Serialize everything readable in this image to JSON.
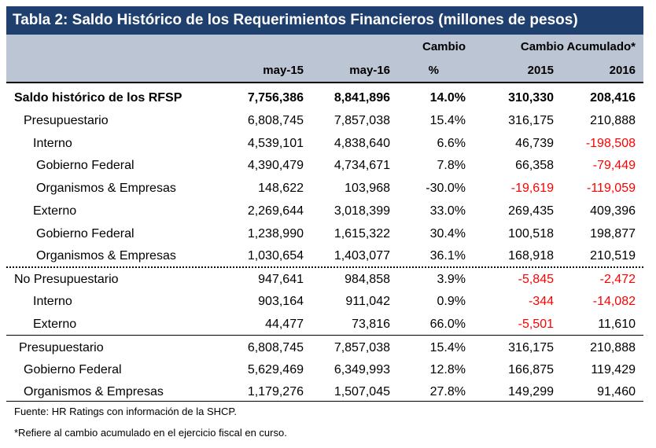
{
  "title": "Tabla 2: Saldo Histórico de los Requerimientos Financieros (millones de pesos)",
  "header": {
    "cambio_top": "Cambio",
    "cambio_acum_top": "Cambio Acumulado*",
    "col1": "may-15",
    "col2": "may-16",
    "col3": "%",
    "col4": "2015",
    "col5": "2016"
  },
  "rows": [
    {
      "label": "Saldo histórico de los RFSP",
      "v1": "7,756,386",
      "v2": "8,841,896",
      "v3": "14.0%",
      "v4": "310,330",
      "v5": "208,416"
    },
    {
      "label": "Presupuestario",
      "v1": "6,808,745",
      "v2": "7,857,038",
      "v3": "15.4%",
      "v4": "316,175",
      "v5": "210,888"
    },
    {
      "label": "Interno",
      "v1": "4,539,101",
      "v2": "4,838,640",
      "v3": "6.6%",
      "v4": "46,739",
      "v5": "-198,508"
    },
    {
      "label": "Gobierno Federal",
      "v1": "4,390,479",
      "v2": "4,734,671",
      "v3": "7.8%",
      "v4": "66,358",
      "v5": "-79,449"
    },
    {
      "label": "Organismos & Empresas",
      "v1": "148,622",
      "v2": "103,968",
      "v3": "-30.0%",
      "v4": "-19,619",
      "v5": "-119,059"
    },
    {
      "label": "Externo",
      "v1": "2,269,644",
      "v2": "3,018,399",
      "v3": "33.0%",
      "v4": "269,435",
      "v5": "409,396"
    },
    {
      "label": "Gobierno Federal",
      "v1": "1,238,990",
      "v2": "1,615,322",
      "v3": "30.4%",
      "v4": "100,518",
      "v5": "198,877"
    },
    {
      "label": "Organismos & Empresas",
      "v1": "1,030,654",
      "v2": "1,403,077",
      "v3": "36.1%",
      "v4": "168,918",
      "v5": "210,519"
    },
    {
      "label": "No Presupuestario",
      "v1": "947,641",
      "v2": "984,858",
      "v3": "3.9%",
      "v4": "-5,845",
      "v5": "-2,472"
    },
    {
      "label": "Interno",
      "v1": "903,164",
      "v2": "911,042",
      "v3": "0.9%",
      "v4": "-344",
      "v5": "-14,082"
    },
    {
      "label": "Externo",
      "v1": "44,477",
      "v2": "73,816",
      "v3": "66.0%",
      "v4": "-5,501",
      "v5": "11,610"
    },
    {
      "label": "Presupuestario",
      "v1": "6,808,745",
      "v2": "7,857,038",
      "v3": "15.4%",
      "v4": "316,175",
      "v5": "210,888"
    },
    {
      "label": "Gobierno Federal",
      "v1": "5,629,469",
      "v2": "6,349,993",
      "v3": "12.8%",
      "v4": "166,875",
      "v5": "119,429"
    },
    {
      "label": "Organismos & Empresas",
      "v1": "1,179,276",
      "v2": "1,507,045",
      "v3": "27.8%",
      "v4": "149,299",
      "v5": "91,460"
    }
  ],
  "notes": {
    "source": "Fuente: HR Ratings con información de la SHCP.",
    "footnote": "*Refiere al cambio acumulado en el ejercicio fiscal en curso."
  },
  "colors": {
    "title_bg": "#1f3f6e",
    "header_bg": "#bcc5d3",
    "negative": "#ff0000"
  }
}
